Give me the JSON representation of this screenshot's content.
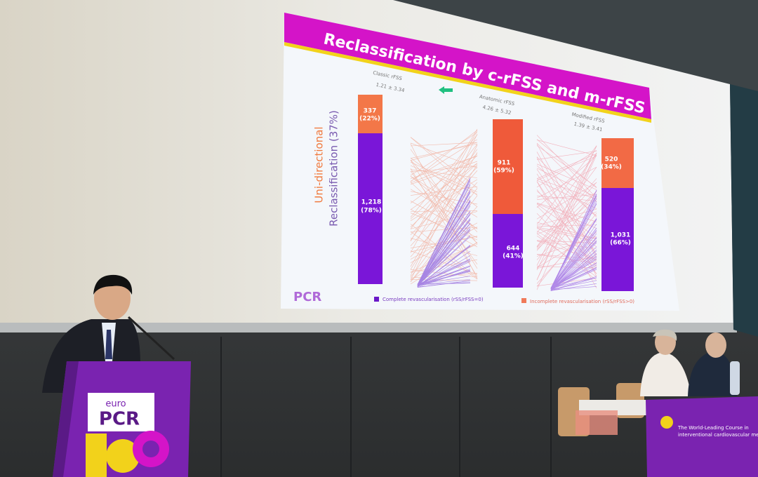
{
  "slide": {
    "title": "Reclassification by c-rFSS and m-rFSS",
    "side_label": {
      "line1": "Uni-directional",
      "line2": "Reclassification (37%)"
    },
    "panels": [
      {
        "label": "Classic rFSS",
        "stat": "1.21 ± 3.34",
        "top_count": "337",
        "top_pct": "(22%)",
        "bottom_count": "1,218",
        "bottom_pct": "(78%)"
      },
      {
        "label": "Anatomic rFSS",
        "stat": "4.26 ± 5.32",
        "top_count": "911",
        "top_pct": "(59%)",
        "bottom_count": "644",
        "bottom_pct": "(41%)"
      },
      {
        "label": "Modified rFSS",
        "stat": "1.39 ± 3.41",
        "top_count": "520",
        "top_pct": "(34%)",
        "bottom_count": "1,031",
        "bottom_pct": "(66%)"
      }
    ],
    "legend": [
      "Complete revascularisation (rSS/rFSS=0)",
      "Incomplete revascularisation (rSS/rFSS>0)"
    ],
    "logo": "PCR"
  },
  "podium": {
    "brand_top": "euro",
    "brand_main": "PCR"
  },
  "table_banner": {
    "line1": "The World-Leading Course in",
    "line2": "interventional cardiovascular medicine"
  }
}
